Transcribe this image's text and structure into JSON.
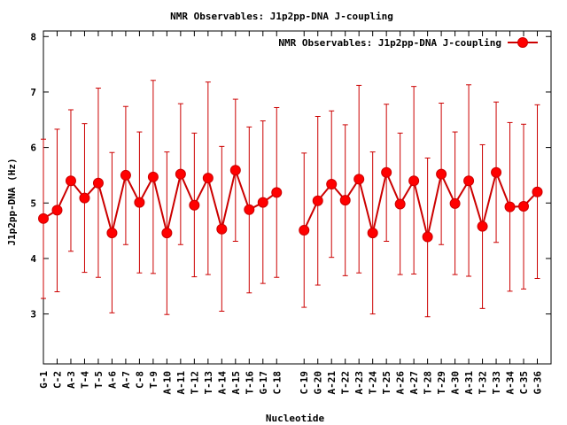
{
  "chart_data": {
    "type": "line",
    "title": "NMR Observables: J1p2pp-DNA J-coupling",
    "xlabel": "Nucleotide",
    "ylabel": "J1p2pp-DNA (Hz)",
    "ylim": [
      2.1,
      8.1
    ],
    "yticks": [
      3,
      4,
      5,
      6,
      7,
      8
    ],
    "grid": false,
    "legend_position": "top-right",
    "series": [
      {
        "name": "NMR Observables: J1p2pp-DNA J-coupling",
        "color": "#ff0000",
        "line_color": "#cc0000",
        "points": [
          {
            "x": "G-1",
            "y": 4.72,
            "low": 3.28,
            "high": 6.15
          },
          {
            "x": "C-2",
            "y": 4.87,
            "low": 3.4,
            "high": 6.33
          },
          {
            "x": "A-3",
            "y": 5.4,
            "low": 4.13,
            "high": 6.68
          },
          {
            "x": "T-4",
            "y": 5.09,
            "low": 3.75,
            "high": 6.43
          },
          {
            "x": "T-5",
            "y": 5.36,
            "low": 3.66,
            "high": 7.07
          },
          {
            "x": "A-6",
            "y": 4.46,
            "low": 3.02,
            "high": 5.91
          },
          {
            "x": "A-7",
            "y": 5.5,
            "low": 4.25,
            "high": 6.74
          },
          {
            "x": "C-8",
            "y": 5.01,
            "low": 3.74,
            "high": 6.28
          },
          {
            "x": "T-9",
            "y": 5.47,
            "low": 3.73,
            "high": 7.21
          },
          {
            "x": "A-10",
            "y": 4.46,
            "low": 2.99,
            "high": 5.92
          },
          {
            "x": "A-11",
            "y": 5.52,
            "low": 4.25,
            "high": 6.79
          },
          {
            "x": "T-12",
            "y": 4.96,
            "low": 3.67,
            "high": 6.26
          },
          {
            "x": "T-13",
            "y": 5.45,
            "low": 3.71,
            "high": 7.18
          },
          {
            "x": "A-14",
            "y": 4.53,
            "low": 3.05,
            "high": 6.02
          },
          {
            "x": "A-15",
            "y": 5.59,
            "low": 4.31,
            "high": 6.87
          },
          {
            "x": "T-16",
            "y": 4.88,
            "low": 3.38,
            "high": 6.37
          },
          {
            "x": "G-17",
            "y": 5.01,
            "low": 3.55,
            "high": 6.48
          },
          {
            "x": "C-18",
            "y": 5.19,
            "low": 3.66,
            "high": 6.72
          },
          {
            "x": "C-19",
            "y": 4.51,
            "low": 3.12,
            "high": 5.9
          },
          {
            "x": "G-20",
            "y": 5.04,
            "low": 3.52,
            "high": 6.56
          },
          {
            "x": "A-21",
            "y": 5.34,
            "low": 4.02,
            "high": 6.66
          },
          {
            "x": "T-22",
            "y": 5.05,
            "low": 3.69,
            "high": 6.41
          },
          {
            "x": "A-23",
            "y": 5.43,
            "low": 3.74,
            "high": 7.12
          },
          {
            "x": "T-24",
            "y": 4.46,
            "low": 3.0,
            "high": 5.92
          },
          {
            "x": "T-25",
            "y": 5.55,
            "low": 4.31,
            "high": 6.78
          },
          {
            "x": "A-26",
            "y": 4.98,
            "low": 3.71,
            "high": 6.26
          },
          {
            "x": "A-27",
            "y": 5.4,
            "low": 3.72,
            "high": 7.1
          },
          {
            "x": "T-28",
            "y": 4.39,
            "low": 2.95,
            "high": 5.81
          },
          {
            "x": "T-29",
            "y": 5.52,
            "low": 4.25,
            "high": 6.8
          },
          {
            "x": "A-30",
            "y": 4.99,
            "low": 3.71,
            "high": 6.28
          },
          {
            "x": "A-31",
            "y": 5.4,
            "low": 3.68,
            "high": 7.13
          },
          {
            "x": "T-32",
            "y": 4.58,
            "low": 3.1,
            "high": 6.05
          },
          {
            "x": "T-33",
            "y": 5.55,
            "low": 4.29,
            "high": 6.82
          },
          {
            "x": "A-34",
            "y": 4.93,
            "low": 3.41,
            "high": 6.45
          },
          {
            "x": "C-35",
            "y": 4.94,
            "low": 3.45,
            "high": 6.42
          },
          {
            "x": "G-36",
            "y": 5.2,
            "low": 3.64,
            "high": 6.77
          }
        ]
      }
    ]
  }
}
